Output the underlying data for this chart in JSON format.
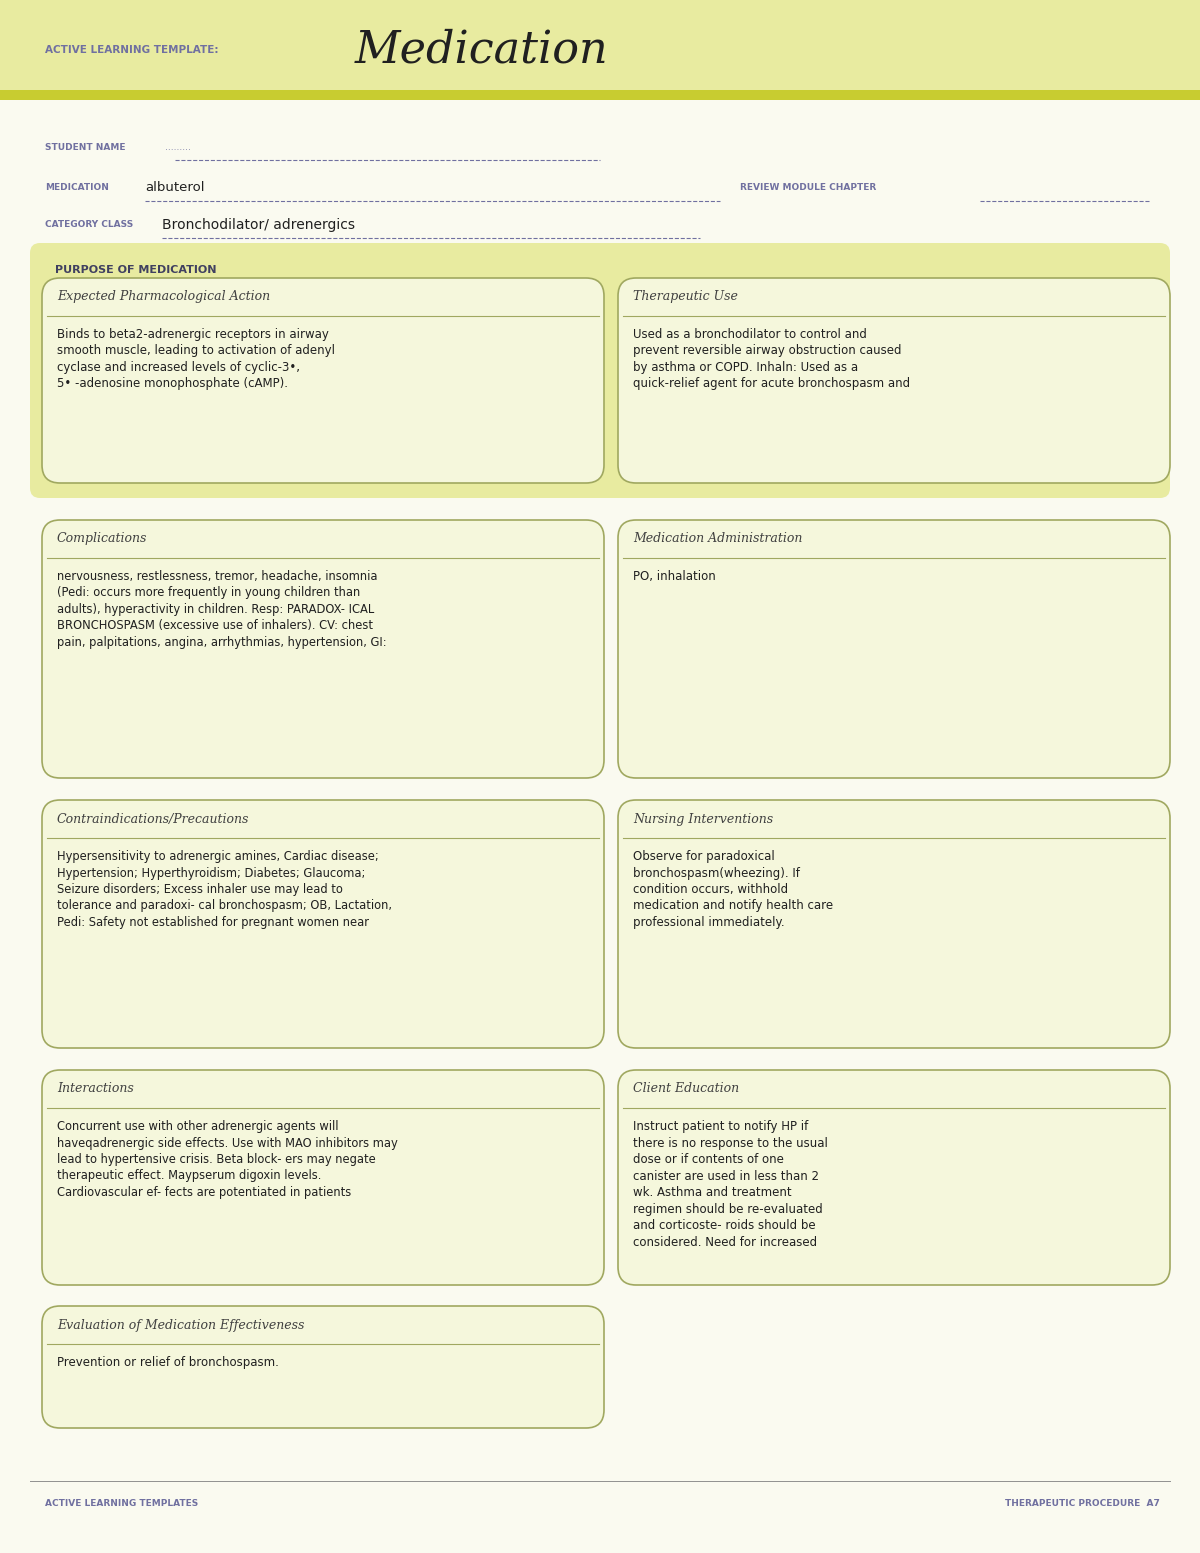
{
  "bg_color": "#fafaf0",
  "header_bg": "#e8eba0",
  "stripe_color": "#c8cc30",
  "title_label": "ACTIVE LEARNING TEMPLATE:",
  "title_main": "Medication",
  "student_name_label": "STUDENT NAME",
  "student_name_dots": ".........",
  "medication_label": "MEDICATION",
  "medication_value": "albuterol",
  "review_label": "REVIEW MODULE CHAPTER",
  "category_label": "CATEGORY CLASS",
  "category_value": "Bronchodilator/ adrenergics",
  "purpose_label": "PURPOSE OF MEDICATION",
  "purpose_bg": "#e8eba0",
  "box_bg": "#f5f7dc",
  "box_border": "#a0a860",
  "section1_title": "Expected Pharmacological Action",
  "section1_body": "Binds to beta2-adrenergic receptors in airway\nsmooth muscle, leading to activation of adenyl\ncyclase and increased levels of cyclic-3•,\n5• -adenosine monophosphate (cAMP).",
  "section2_title": "Therapeutic Use",
  "section2_body": "Used as a bronchodilator to control and\nprevent reversible airway obstruction caused\nby asthma or COPD. Inhaln: Used as a\nquick-relief agent for acute bronchospasm and",
  "section3_title": "Complications",
  "section3_body": "nervousness, restlessness, tremor, headache, insomnia\n(Pedi: occurs more frequently in young children than\nadults), hyperactivity in children. Resp: PARADOX- ICAL\nBRONCHOSPASM (excessive use of inhalers). CV: chest\npain, palpitations, angina, arrhythmias, hypertension, GI:",
  "section4_title": "Medication Administration",
  "section4_body": "PO, inhalation",
  "section5_title": "Contraindications/Precautions",
  "section5_body": "Hypersensitivity to adrenergic amines, Cardiac disease;\nHypertension; Hyperthyroidism; Diabetes; Glaucoma;\nSeizure disorders; Excess inhaler use may lead to\ntolerance and paradoxi- cal bronchospasm; OB, Lactation,\nPedi: Safety not established for pregnant women near",
  "section6_title": "Nursing Interventions",
  "section6_body": "Observe for paradoxical\nbronchospasm(wheezing). If\ncondition occurs, withhold\nmedication and notify health care\nprofessional immediately.",
  "section7_title": "Interactions",
  "section7_body": "Concurrent use with other adrenergic agents will\nhaveqadrenergic side effects. Use with MAO inhibitors may\nlead to hypertensive crisis. Beta block- ers may negate\ntherapeutic effect. Maypserum digoxin levels.\nCardiovascular ef- fects are potentiated in patients",
  "section8_title": "Client Education",
  "section8_body": "Instruct patient to notify HP if\nthere is no response to the usual\ndose or if contents of one\ncanister are used in less than 2\nwk. Asthma and treatment\nregimen should be re-evaluated\nand corticoste- roids should be\nconsidered. Need for increased",
  "section9_title": "Evaluation of Medication Effectiveness",
  "section9_body": "Prevention or relief of bronchospasm.",
  "footer_left": "ACTIVE LEARNING TEMPLATES",
  "footer_right": "THERAPEUTIC PROCEDURE  A7",
  "label_color": "#7070a0",
  "title_color": "#404040",
  "body_color": "#202020",
  "header_text_color": "#7070a0",
  "purpose_label_color": "#404060"
}
